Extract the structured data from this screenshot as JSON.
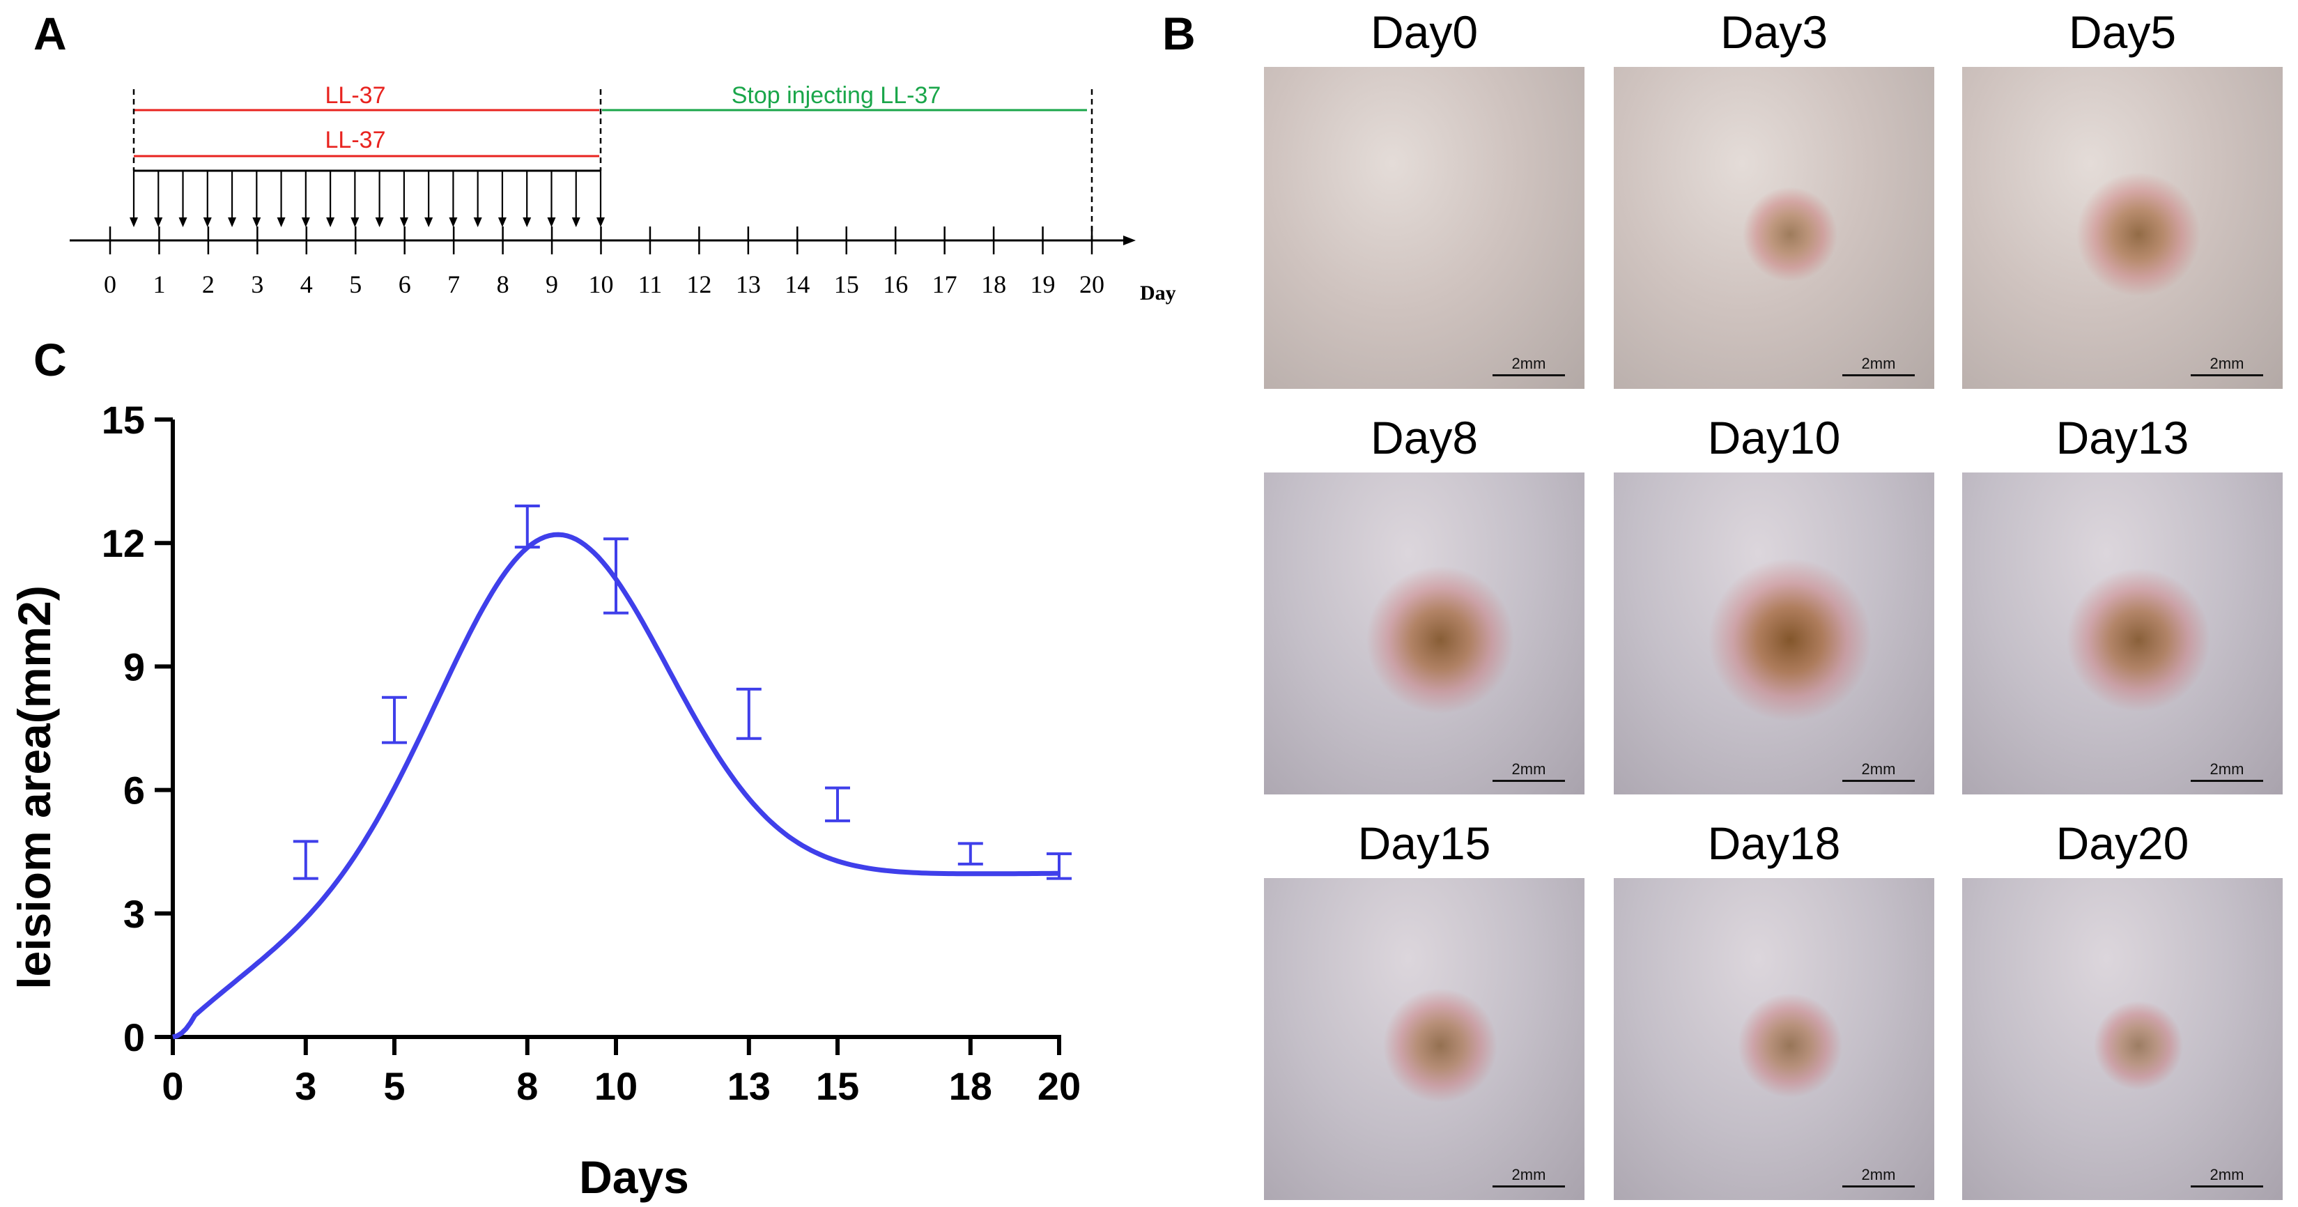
{
  "panels": {
    "a": {
      "letter": "A"
    },
    "b": {
      "letter": "B"
    },
    "c": {
      "letter": "C"
    }
  },
  "timeline": {
    "ll37_label_1": "LL-37",
    "ll37_label_2": "LL-37",
    "stop_label": "Stop injecting LL-37",
    "day_unit": "Day",
    "day_ticks": [
      "0",
      "1",
      "2",
      "3",
      "4",
      "5",
      "6",
      "7",
      "8",
      "9",
      "10",
      "11",
      "12",
      "13",
      "14",
      "15",
      "16",
      "17",
      "18",
      "19",
      "20"
    ],
    "injection_count": 20,
    "colors": {
      "ll37": "#e8231f",
      "stop": "#1aa64a",
      "axis": "#000000"
    }
  },
  "photos": {
    "scale_label": "2mm",
    "days": [
      "Day0",
      "Day3",
      "Day5",
      "Day8",
      "Day10",
      "Day13",
      "Day15",
      "Day18",
      "Day20"
    ],
    "lesion_levels": [
      0,
      0.25,
      0.55,
      0.8,
      0.95,
      0.75,
      0.45,
      0.35,
      0.2
    ]
  },
  "chart_data": {
    "type": "line",
    "xlabel": "Days",
    "ylabel": "leisiom area(mm2)",
    "xlim": [
      0,
      20
    ],
    "ylim": [
      0,
      15
    ],
    "xticks": [
      0,
      3,
      5,
      8,
      10,
      13,
      15,
      18,
      20
    ],
    "yticks": [
      0,
      3,
      6,
      9,
      12,
      15
    ],
    "series": [
      {
        "color": "#3f3fea",
        "x": [
          0,
          3,
          5,
          8,
          10,
          13,
          15,
          18,
          20
        ],
        "y": [
          0,
          4.3,
          7.7,
          12.4,
          11.2,
          7.85,
          5.65,
          4.45,
          4.15
        ],
        "error": [
          0,
          0.45,
          0.55,
          0.5,
          0.9,
          0.6,
          0.4,
          0.25,
          0.3
        ],
        "fit_curve": {
          "peak_x": 8.6,
          "peak_y": 12.2
        }
      }
    ],
    "grid": false,
    "legend": "none"
  }
}
